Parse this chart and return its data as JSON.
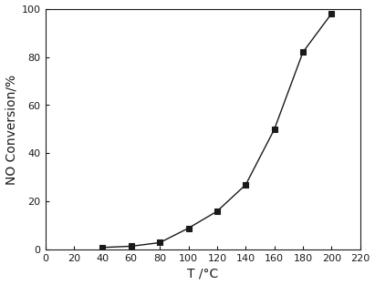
{
  "x": [
    40,
    60,
    80,
    100,
    120,
    140,
    160,
    180,
    200
  ],
  "y": [
    1.0,
    1.5,
    3.0,
    9.0,
    16.0,
    27.0,
    50.0,
    82.0,
    98.0
  ],
  "xlabel": "T /°C",
  "ylabel": "NO Conversion/%",
  "xlim": [
    0,
    220
  ],
  "ylim": [
    0,
    100
  ],
  "xticks": [
    0,
    20,
    40,
    60,
    80,
    100,
    120,
    140,
    160,
    180,
    200,
    220
  ],
  "yticks": [
    0,
    20,
    40,
    60,
    80,
    100
  ],
  "line_color": "#1a1a1a",
  "marker": "s",
  "marker_color": "#1a1a1a",
  "marker_size": 5,
  "line_width": 1.0,
  "line_style": "-",
  "background_color": "#ffffff",
  "axes_color": "#1a1a1a",
  "tick_fontsize": 8,
  "label_fontsize": 10
}
